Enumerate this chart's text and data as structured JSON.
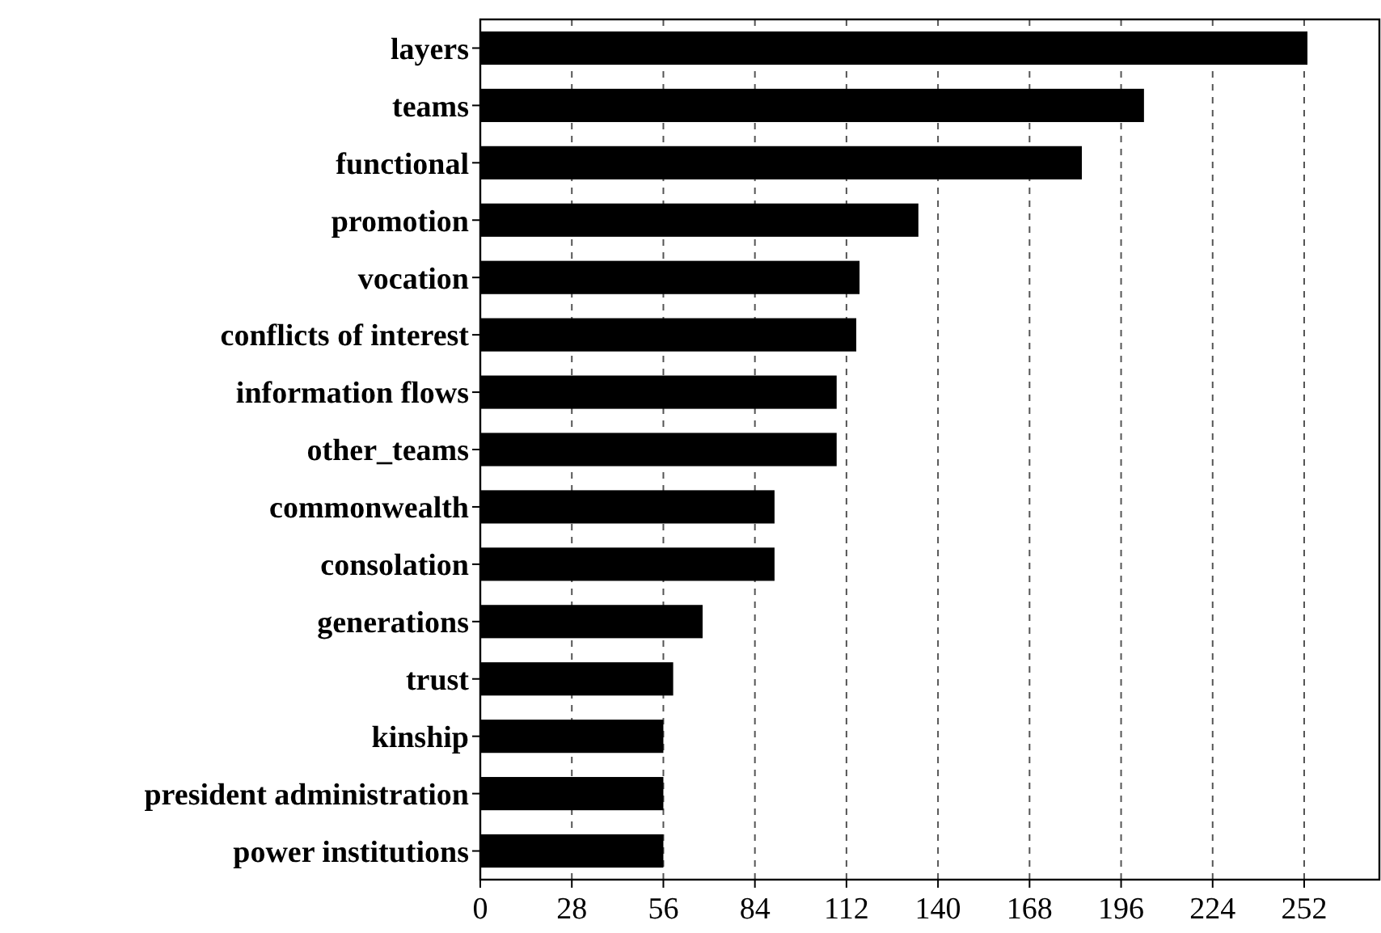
{
  "chart_data": {
    "type": "bar",
    "orientation": "horizontal",
    "categories": [
      "layers",
      "teams",
      "functional",
      "promotion",
      "vocation",
      "conflicts of interest",
      "information flows",
      "other_teams",
      "commonwealth",
      "consolation",
      "generations",
      "trust",
      "kinship",
      "president administration",
      "power institutions"
    ],
    "values": [
      253,
      203,
      184,
      134,
      116,
      115,
      109,
      109,
      90,
      90,
      68,
      59,
      56,
      56,
      56
    ],
    "color": "#000000",
    "xlim": [
      0,
      275
    ],
    "xticks": [
      0,
      28,
      56,
      84,
      112,
      140,
      168,
      196,
      224,
      252
    ],
    "grid": "x"
  }
}
